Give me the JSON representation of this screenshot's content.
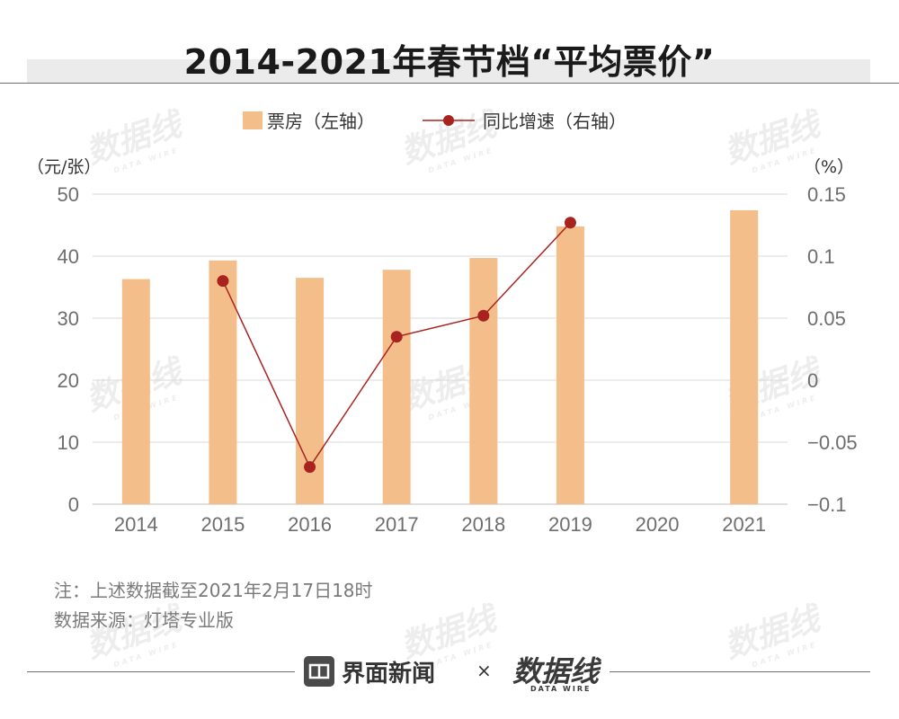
{
  "title": "2014-2021年春节档“平均票价”",
  "legend": {
    "bar_label": "票房（左轴）",
    "line_label": "同比增速（右轴）"
  },
  "units": {
    "left": "（元/张）",
    "right": "（%）"
  },
  "notes": {
    "line1": "注：上述数据截至2021年2月17日18时",
    "line2": "数据来源：灯塔专业版"
  },
  "footer": {
    "brand1": "界面新闻",
    "times": "×",
    "brand2": "数据线",
    "brand2_sub": "DATA WIRE"
  },
  "watermark": {
    "main": "数据线",
    "sub": "DATA WIRE"
  },
  "colors": {
    "bar": "#f4be8b",
    "line": "#a8231f",
    "grid": "#d9d9d9",
    "axis_text": "#6e6e6e"
  },
  "chart_data": {
    "type": "bar",
    "categories": [
      "2014",
      "2015",
      "2016",
      "2017",
      "2018",
      "2019",
      "2020",
      "2021"
    ],
    "series": [
      {
        "name": "票房（左轴）",
        "type": "bar",
        "axis": "left",
        "values": [
          36.3,
          39.3,
          36.5,
          37.8,
          39.7,
          44.8,
          null,
          47.4
        ]
      },
      {
        "name": "同比增速（右轴）",
        "type": "line",
        "axis": "right",
        "values": [
          null,
          0.08,
          -0.07,
          0.035,
          0.052,
          0.127,
          null,
          null
        ]
      }
    ],
    "left_axis": {
      "min": 0,
      "max": 50,
      "ticks": [
        0,
        10,
        20,
        30,
        40,
        50
      ],
      "tick_labels": [
        "0",
        "10",
        "20",
        "30",
        "40",
        "50"
      ]
    },
    "right_axis": {
      "min": -0.1,
      "max": 0.15,
      "ticks": [
        -0.1,
        -0.05,
        0,
        0.05,
        0.1,
        0.15
      ],
      "tick_labels": [
        "−0.1",
        "−0.05",
        "0",
        "0.05",
        "0.1",
        "0.15"
      ]
    },
    "grid": true,
    "legend_position": "top-center"
  }
}
